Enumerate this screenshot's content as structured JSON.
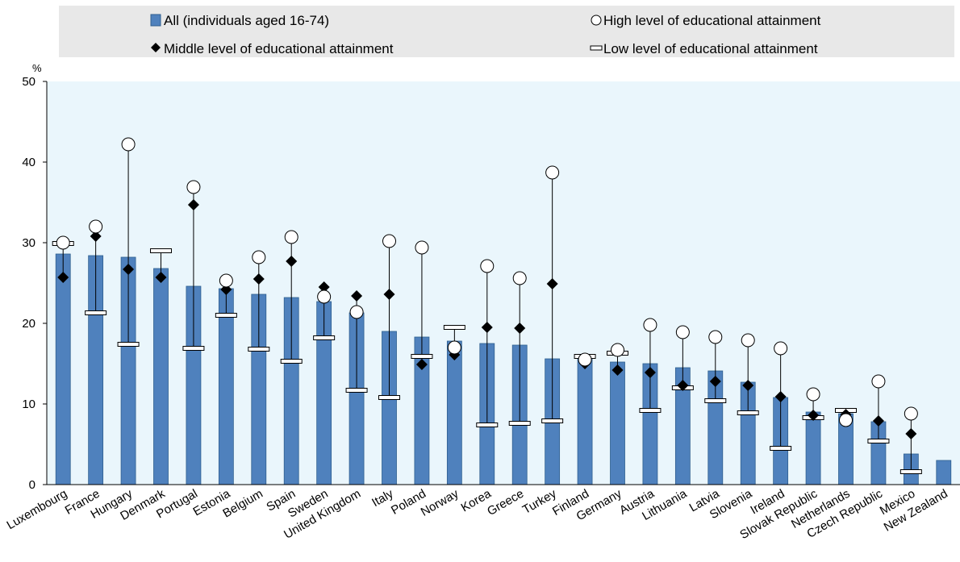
{
  "chart_data": {
    "type": "bar",
    "ylabel": "%",
    "ylim": [
      0,
      50
    ],
    "yticks": [
      0,
      10,
      20,
      30,
      40,
      50
    ],
    "legend": {
      "placement": "top",
      "items": [
        {
          "key": "all",
          "label": "All (individuals aged 16-74)",
          "marker": "bar"
        },
        {
          "key": "high",
          "label": "High level of educational attainment",
          "marker": "circle"
        },
        {
          "key": "middle",
          "label": "Middle level of educational attainment",
          "marker": "diamond"
        },
        {
          "key": "low",
          "label": "Low level of educational attainment",
          "marker": "dash"
        }
      ]
    },
    "colors": {
      "bar": "#4f81bd",
      "bar_edge": "#2f5f8f",
      "plot_bg": "#eaf6fc",
      "legend_bg": "#e8e8e8"
    },
    "categories": [
      "Luxembourg",
      "France",
      "Hungary",
      "Denmark",
      "Portugal",
      "Estonia",
      "Belgium",
      "Spain",
      "Sweden",
      "United Kingdom",
      "Italy",
      "Poland",
      "Norway",
      "Korea",
      "Greece",
      "Turkey",
      "Finland",
      "Germany",
      "Austria",
      "Lithuania",
      "Latvia",
      "Slovenia",
      "Ireland",
      "Slovak Republic",
      "Netherlands",
      "Czech Republic",
      "Mexico",
      "New Zealand"
    ],
    "series": [
      {
        "name": "All (individuals aged 16-74)",
        "values": [
          28.6,
          28.4,
          28.2,
          26.8,
          24.6,
          24.3,
          23.6,
          23.2,
          22.7,
          21.3,
          19.0,
          18.3,
          17.8,
          17.5,
          17.3,
          15.6,
          15.8,
          15.2,
          15.0,
          14.5,
          14.1,
          12.7,
          10.8,
          9.0,
          8.8,
          7.8,
          3.8,
          3.0
        ]
      },
      {
        "name": "High level of educational attainment",
        "values": [
          30.0,
          32.0,
          42.2,
          null,
          36.9,
          25.3,
          28.2,
          30.7,
          23.3,
          21.4,
          30.2,
          29.4,
          17.0,
          27.1,
          25.6,
          38.7,
          15.5,
          16.7,
          19.8,
          18.9,
          18.3,
          17.9,
          16.9,
          11.2,
          8.0,
          12.8,
          8.8,
          null
        ]
      },
      {
        "name": "Middle level of educational attainment",
        "values": [
          25.7,
          30.8,
          26.7,
          25.7,
          34.7,
          24.2,
          25.5,
          27.7,
          24.5,
          23.4,
          23.6,
          14.9,
          16.1,
          19.5,
          19.4,
          24.9,
          15.0,
          14.2,
          13.9,
          12.3,
          12.8,
          12.3,
          10.9,
          8.6,
          8.7,
          7.9,
          6.3,
          null
        ]
      },
      {
        "name": "Low level of educational attainment",
        "values": [
          29.9,
          21.3,
          17.4,
          29.0,
          16.9,
          21.0,
          16.8,
          15.3,
          18.2,
          11.7,
          10.8,
          15.9,
          19.5,
          7.4,
          7.6,
          7.9,
          15.9,
          16.3,
          9.2,
          12.0,
          10.4,
          8.9,
          4.5,
          8.3,
          9.2,
          5.4,
          1.6,
          null
        ]
      }
    ]
  }
}
